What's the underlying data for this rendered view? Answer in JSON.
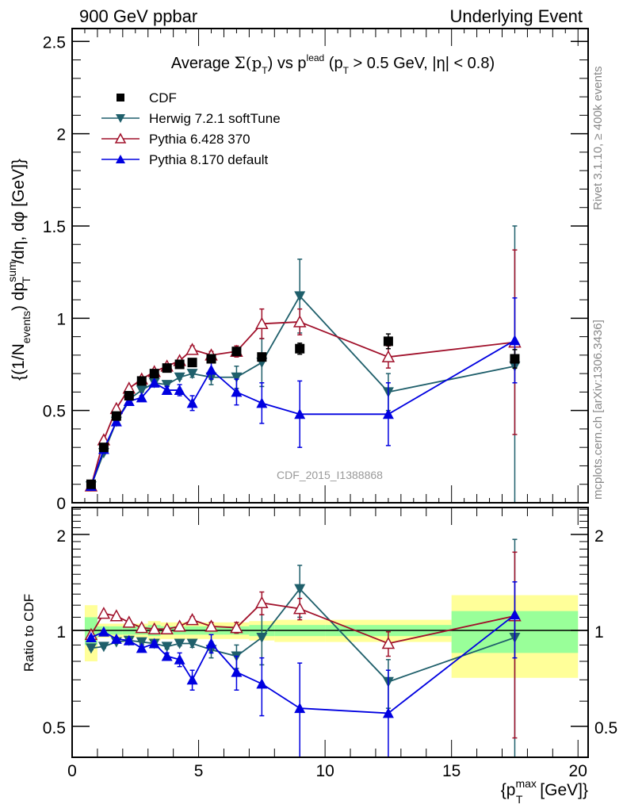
{
  "header": {
    "left": "900 GeV ppbar",
    "right": "Underlying Event"
  },
  "side_labels": {
    "rivet": "Rivet 3.1.10, ≥ 400k events",
    "mcplots": "mcplots.cern.ch [arXiv:1306.3436]"
  },
  "chart_data": [
    {
      "type": "scatter",
      "panel": "main",
      "title": "Average Σ(p_T) vs p_T^lead (p_T > 0.5 GeV, |η| < 0.8)",
      "title_parts": {
        "prefix": "Average ",
        "sigma": "Σ(p",
        "sub_t": "T",
        "close": ") vs p",
        "sup_lead": "lead",
        "rest": " (p",
        "rest2": " > 0.5 GeV, |η| < 0.8)"
      },
      "ylabel": "{(1/N_events) dp_T^sum/dη, dφ [GeV]}",
      "ylabel_parts": {
        "a": "{(1/N",
        "a_sub": "events",
        "b": ") dp",
        "b_sup": "sum",
        "b_sub": "T",
        "c": "/dη, dφ [GeV]}"
      },
      "xlabel": "",
      "xlim": [
        0,
        20.4
      ],
      "ylim": [
        0,
        2.57
      ],
      "yticks": [
        0,
        0.5,
        1,
        1.5,
        2,
        2.5
      ],
      "ytick_labels": [
        "0",
        "0.5",
        "1",
        "1.5",
        "2",
        "2.5"
      ],
      "analysis_label": "CDF_2015_I1388868",
      "legend_position": "top-left",
      "x": [
        0.75,
        1.25,
        1.75,
        2.25,
        2.75,
        3.25,
        3.75,
        4.25,
        4.75,
        5.5,
        6.5,
        7.5,
        9,
        12.5,
        17.5
      ],
      "series": [
        {
          "name": "CDF",
          "color": "#000000",
          "marker": "square",
          "values": [
            0.1,
            0.3,
            0.47,
            0.58,
            0.66,
            0.7,
            0.73,
            0.75,
            0.76,
            0.78,
            0.82,
            0.79,
            0.835,
            0.875,
            0.78
          ],
          "errors": [
            0.01,
            0.01,
            0.01,
            0.01,
            0.01,
            0.01,
            0.01,
            0.01,
            0.01,
            0.02,
            0.02,
            0.02,
            0.03,
            0.04,
            0.05
          ]
        },
        {
          "name": "Herwig 7.2.1 softTune",
          "color": "#1f5f6b",
          "marker": "triangle-down",
          "values": [
            0.09,
            0.27,
            0.44,
            0.56,
            0.61,
            0.65,
            0.64,
            0.68,
            0.7,
            0.68,
            0.68,
            0.76,
            1.12,
            0.6,
            0.74
          ],
          "errors": [
            0.005,
            0.005,
            0.005,
            0.005,
            0.01,
            0.01,
            0.01,
            0.01,
            0.02,
            0.04,
            0.06,
            0.13,
            0.2,
            0.1,
            0.76
          ]
        },
        {
          "name": "Pythia 6.428 370",
          "color": "#a0102a",
          "marker": "triangle-open",
          "values": [
            0.09,
            0.34,
            0.51,
            0.62,
            0.67,
            0.71,
            0.74,
            0.77,
            0.83,
            0.8,
            0.82,
            0.97,
            0.98,
            0.79,
            0.87
          ],
          "errors": [
            0.005,
            0.005,
            0.005,
            0.005,
            0.01,
            0.01,
            0.01,
            0.01,
            0.02,
            0.02,
            0.03,
            0.08,
            0.07,
            0.06,
            0.5
          ]
        },
        {
          "name": "Pythia 8.170 default",
          "color": "#0000e0",
          "marker": "triangle-up",
          "values": [
            0.09,
            0.29,
            0.44,
            0.55,
            0.57,
            0.65,
            0.61,
            0.61,
            0.54,
            0.72,
            0.6,
            0.54,
            0.48,
            0.48,
            0.88
          ],
          "errors": [
            0.005,
            0.005,
            0.005,
            0.005,
            0.01,
            0.01,
            0.02,
            0.03,
            0.04,
            0.05,
            0.07,
            0.11,
            0.18,
            0.17,
            0.23
          ]
        }
      ]
    },
    {
      "type": "scatter",
      "panel": "ratio",
      "ylabel": "Ratio to CDF",
      "xlabel": "{p_T^max [GeV]}",
      "xlabel_parts": {
        "a": "{p",
        "sup": "max",
        "sub": "T",
        "b": " [GeV]}"
      },
      "yscale": "log",
      "xlim": [
        0,
        20.4
      ],
      "ylim": [
        0.4,
        2.43
      ],
      "yticks": [
        0.5,
        1,
        2
      ],
      "ytick_labels": [
        "0.5",
        "1",
        "2"
      ],
      "xticks": [
        0,
        5,
        10,
        15,
        20
      ],
      "xtick_labels": [
        "0",
        "5",
        "10",
        "15",
        "20"
      ],
      "reference_line": 1,
      "bands": {
        "bin_edges": [
          0.5,
          1,
          1.5,
          2,
          2.5,
          3,
          3.5,
          4,
          4.5,
          5,
          6,
          7,
          8,
          10,
          15,
          20
        ],
        "green_halfwidth": [
          0.1,
          0.03,
          0.03,
          0.03,
          0.03,
          0.04,
          0.03,
          0.03,
          0.03,
          0.03,
          0.03,
          0.04,
          0.04,
          0.04,
          0.15
        ],
        "yellow_halfwidth": [
          0.2,
          0.05,
          0.05,
          0.05,
          0.05,
          0.07,
          0.06,
          0.06,
          0.06,
          0.06,
          0.06,
          0.07,
          0.08,
          0.08,
          0.29
        ],
        "green_color": "#99ff99",
        "yellow_color": "#ffff99"
      },
      "x": [
        0.75,
        1.25,
        1.75,
        2.25,
        2.75,
        3.25,
        3.75,
        4.25,
        4.75,
        5.5,
        6.5,
        7.5,
        9,
        12.5,
        17.5
      ],
      "series": [
        {
          "name": "Herwig 7.2.1 softTune",
          "color": "#1f5f6b",
          "marker": "triangle-down",
          "values": [
            0.88,
            0.89,
            0.92,
            0.93,
            0.92,
            0.91,
            0.89,
            0.91,
            0.91,
            0.87,
            0.83,
            0.95,
            1.35,
            0.69,
            0.95
          ],
          "errors": [
            0.01,
            0.01,
            0.01,
            0.01,
            0.015,
            0.015,
            0.015,
            0.015,
            0.025,
            0.05,
            0.07,
            0.17,
            0.25,
            0.12,
            0.98
          ]
        },
        {
          "name": "Pythia 6.428 370",
          "color": "#a0102a",
          "marker": "triangle-open",
          "values": [
            0.97,
            1.13,
            1.11,
            1.06,
            1.02,
            1.01,
            1.01,
            1.03,
            1.08,
            1.03,
            1.02,
            1.22,
            1.17,
            0.91,
            1.11
          ],
          "errors": [
            0.01,
            0.01,
            0.01,
            0.01,
            0.015,
            0.015,
            0.015,
            0.015,
            0.025,
            0.03,
            0.04,
            0.1,
            0.09,
            0.08,
            0.65
          ]
        },
        {
          "name": "Pythia 8.170 default",
          "color": "#0000e0",
          "marker": "triangle-up",
          "values": [
            0.95,
            0.99,
            0.94,
            0.93,
            0.88,
            0.91,
            0.83,
            0.81,
            0.7,
            0.91,
            0.74,
            0.68,
            0.57,
            0.55,
            1.12
          ],
          "errors": [
            0.01,
            0.01,
            0.01,
            0.01,
            0.015,
            0.015,
            0.02,
            0.04,
            0.05,
            0.06,
            0.09,
            0.14,
            0.22,
            0.2,
            0.3
          ]
        }
      ]
    }
  ]
}
